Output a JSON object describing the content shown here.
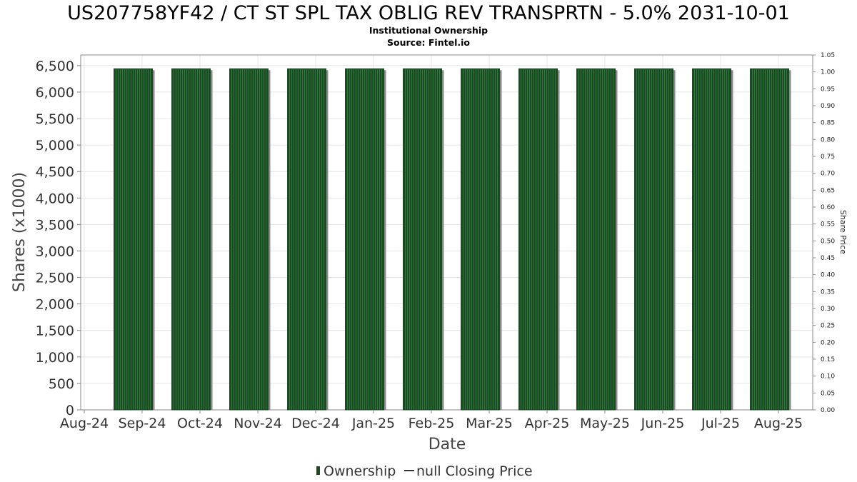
{
  "chart_data": {
    "type": "bar",
    "title": "US207758YF42 / CT ST SPL TAX OBLIG REV TRANSPRTN - 5.0% 2031-10-01",
    "subtitle_lines": [
      "Institutional Ownership",
      "Source: Fintel.io"
    ],
    "xlabel": "Date",
    "ylabel": "Shares (x1000)",
    "y2label": "Share Price",
    "x_tick_labels": [
      "Aug-24",
      "Sep-24",
      "Oct-24",
      "Nov-24",
      "Dec-24",
      "Jan-25",
      "Feb-25",
      "Mar-25",
      "Apr-25",
      "May-25",
      "Jun-25",
      "Jul-25",
      "Aug-25"
    ],
    "categories": [
      "Sep-24",
      "Oct-24",
      "Nov-24",
      "Dec-24",
      "Jan-25",
      "Feb-25",
      "Mar-25",
      "Apr-25",
      "May-25",
      "Jun-25",
      "Jul-25",
      "Aug-25"
    ],
    "series": [
      {
        "name": "Ownership",
        "axis": "left",
        "values": [
          6440,
          6440,
          6440,
          6440,
          6440,
          6440,
          6440,
          6440,
          6440,
          6440,
          6440,
          6440
        ]
      }
    ],
    "ylim": [
      0,
      6700
    ],
    "y_ticks": [
      0,
      500,
      1000,
      1500,
      2000,
      2500,
      3000,
      3500,
      4000,
      4500,
      5000,
      5500,
      6000,
      6500
    ],
    "y_tick_labels": [
      "0",
      "500",
      "1,000",
      "1,500",
      "2,000",
      "2,500",
      "3,000",
      "3,500",
      "4,000",
      "4,500",
      "5,000",
      "5,500",
      "6,000",
      "6,500"
    ],
    "y2lim": [
      0,
      1.05
    ],
    "y2_tick_labels": [
      "0.00",
      "0.05",
      "0.10",
      "0.15",
      "0.20",
      "0.25",
      "0.30",
      "0.35",
      "0.40",
      "0.45",
      "0.50",
      "0.55",
      "0.60",
      "0.65",
      "0.70",
      "0.75",
      "0.80",
      "0.85",
      "0.90",
      "0.95",
      "1.00",
      "1.05"
    ],
    "grid": true,
    "legend": {
      "placement": "bottom",
      "entries": [
        "Ownership",
        "null Closing Price"
      ]
    },
    "colors": {
      "bar_fill": "#1b4a25",
      "bar_stripe": "#2d7a3a",
      "bar_shadow": "#8a8a8a",
      "grid": "#e4e4e4",
      "axis": "#888888"
    }
  }
}
